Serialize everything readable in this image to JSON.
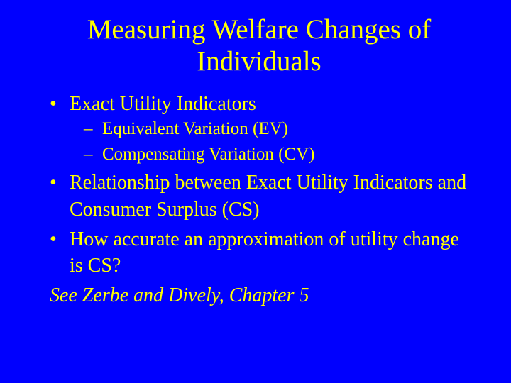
{
  "slide": {
    "background_color": "#0000fe",
    "text_color": "#ffff00",
    "title_color": "#ffff00",
    "font_family": "Times New Roman",
    "title": "Measuring Welfare Changes of Individuals",
    "title_fontsize": 39,
    "body_fontsize": 28,
    "sub_fontsize": 25,
    "bullets": [
      {
        "text": "Exact Utility Indicators",
        "children": [
          {
            "text": "Equivalent Variation (EV)"
          },
          {
            "text": "Compensating Variation (CV)"
          }
        ]
      },
      {
        "text": "Relationship between Exact Utility Indicators and Consumer Surplus (CS)"
      },
      {
        "text": "How accurate an approximation of utility change is CS?"
      }
    ],
    "reference": "See Zerbe and Dively, Chapter 5"
  }
}
